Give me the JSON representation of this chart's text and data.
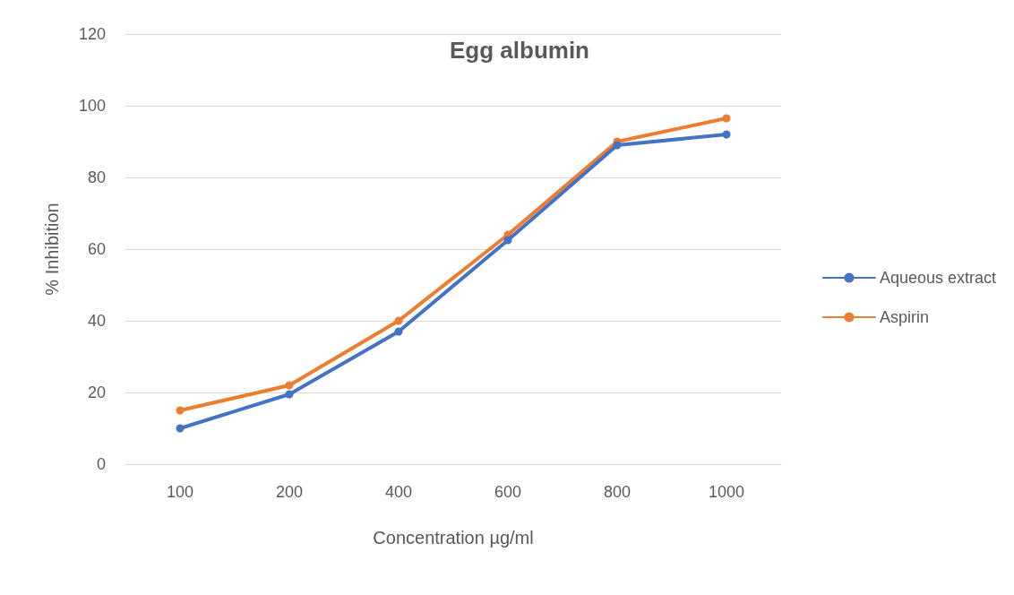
{
  "chart_data": {
    "type": "line",
    "title": "Egg albumin",
    "xlabel": "Concentration µg/ml",
    "ylabel": "% Inhibition",
    "categories": [
      "100",
      "200",
      "400",
      "600",
      "800",
      "1000"
    ],
    "series": [
      {
        "name": "Aqueous extract",
        "color": "#4472c4",
        "values": [
          10,
          19.5,
          37,
          62.5,
          89,
          92
        ]
      },
      {
        "name": "Aspirin",
        "color": "#ed7d31",
        "values": [
          15,
          22,
          40,
          64,
          90,
          96.5
        ]
      }
    ],
    "ylim": [
      0,
      120
    ],
    "yticks": [
      0,
      20,
      40,
      60,
      80,
      100,
      120
    ],
    "grid": "y",
    "legend": "right",
    "marker": "circle",
    "line_style": "solid"
  }
}
